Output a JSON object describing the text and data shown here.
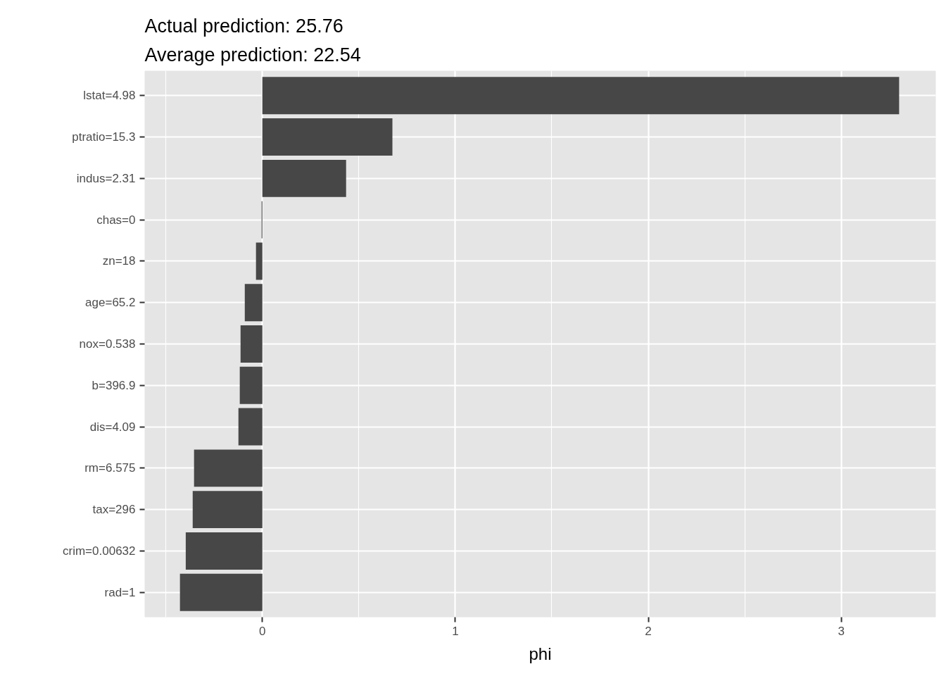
{
  "chart_data": {
    "type": "bar",
    "orientation": "horizontal",
    "title": "Actual prediction: 25.76",
    "subtitle": "Average prediction: 22.54",
    "xlabel": "phi",
    "categories": [
      "lstat=4.98",
      "ptratio=15.3",
      "indus=2.31",
      "chas=0",
      "zn=18",
      "age=65.2",
      "nox=0.538",
      "b=396.9",
      "dis=4.09",
      "rm=6.575",
      "tax=296",
      "crim=0.00632",
      "rad=1"
    ],
    "values": [
      3.3,
      0.674,
      0.434,
      -0.004,
      -0.033,
      -0.091,
      -0.113,
      -0.117,
      -0.124,
      -0.354,
      -0.361,
      -0.397,
      -0.427
    ],
    "color": "#474747",
    "xlim": [
      -0.61,
      3.49
    ],
    "xticks": [
      0,
      1,
      2,
      3
    ],
    "grid": true
  }
}
